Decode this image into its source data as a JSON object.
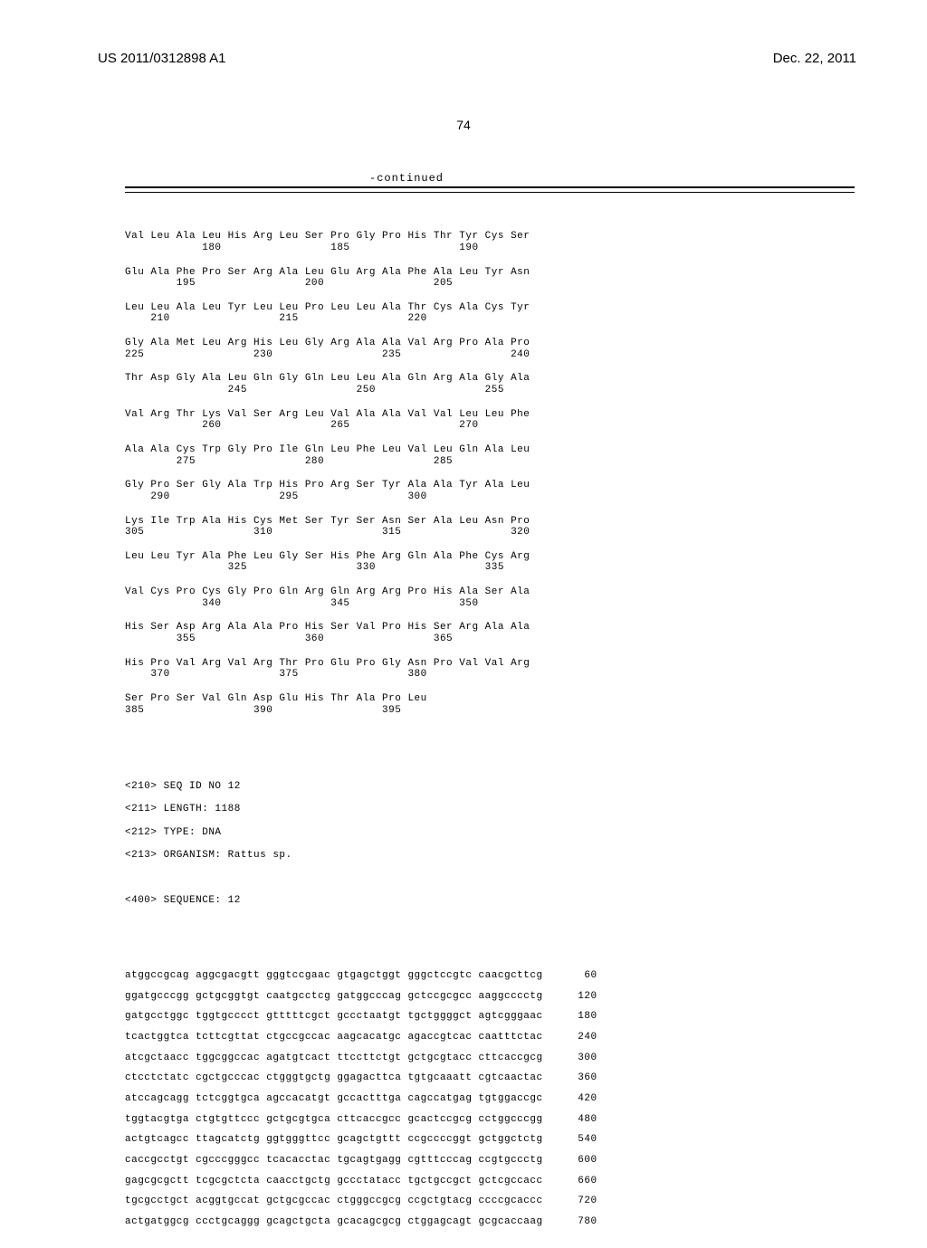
{
  "header": {
    "pub_number": "US 2011/0312898 A1",
    "pub_date": "Dec. 22, 2011"
  },
  "page_number": "74",
  "continued_label": "-continued",
  "protein_blocks": [
    {
      "aa": "Val Leu Ala Leu His Arg Leu Ser Pro Gly Pro His Thr Tyr Cys Ser",
      "nums": "            180                 185                 190"
    },
    {
      "aa": "Glu Ala Phe Pro Ser Arg Ala Leu Glu Arg Ala Phe Ala Leu Tyr Asn",
      "nums": "        195                 200                 205"
    },
    {
      "aa": "Leu Leu Ala Leu Tyr Leu Leu Pro Leu Leu Ala Thr Cys Ala Cys Tyr",
      "nums": "    210                 215                 220"
    },
    {
      "aa": "Gly Ala Met Leu Arg His Leu Gly Arg Ala Ala Val Arg Pro Ala Pro",
      "nums": "225                 230                 235                 240"
    },
    {
      "aa": "Thr Asp Gly Ala Leu Gln Gly Gln Leu Leu Ala Gln Arg Ala Gly Ala",
      "nums": "                245                 250                 255"
    },
    {
      "aa": "Val Arg Thr Lys Val Ser Arg Leu Val Ala Ala Val Val Leu Leu Phe",
      "nums": "            260                 265                 270"
    },
    {
      "aa": "Ala Ala Cys Trp Gly Pro Ile Gln Leu Phe Leu Val Leu Gln Ala Leu",
      "nums": "        275                 280                 285"
    },
    {
      "aa": "Gly Pro Ser Gly Ala Trp His Pro Arg Ser Tyr Ala Ala Tyr Ala Leu",
      "nums": "    290                 295                 300"
    },
    {
      "aa": "Lys Ile Trp Ala His Cys Met Ser Tyr Ser Asn Ser Ala Leu Asn Pro",
      "nums": "305                 310                 315                 320"
    },
    {
      "aa": "Leu Leu Tyr Ala Phe Leu Gly Ser His Phe Arg Gln Ala Phe Cys Arg",
      "nums": "                325                 330                 335"
    },
    {
      "aa": "Val Cys Pro Cys Gly Pro Gln Arg Gln Arg Arg Pro His Ala Ser Ala",
      "nums": "            340                 345                 350"
    },
    {
      "aa": "His Ser Asp Arg Ala Ala Pro His Ser Val Pro His Ser Arg Ala Ala",
      "nums": "        355                 360                 365"
    },
    {
      "aa": "His Pro Val Arg Val Arg Thr Pro Glu Pro Gly Asn Pro Val Val Arg",
      "nums": "    370                 375                 380"
    },
    {
      "aa": "Ser Pro Ser Val Gln Asp Glu His Thr Ala Pro Leu",
      "nums": "385                 390                 395"
    }
  ],
  "seq_meta": {
    "id_line": "<210> SEQ ID NO 12",
    "length_line": "<211> LENGTH: 1188",
    "type_line": "<212> TYPE: DNA",
    "organism_line": "<213> ORGANISM: Rattus sp.",
    "sequence_line": "<400> SEQUENCE: 12"
  },
  "dna_lines": [
    {
      "seq": "atggccgcag aggcgacgtt gggtccgaac gtgagctggt gggctccgtc caacgcttcg",
      "pos": "60"
    },
    {
      "seq": "ggatgcccgg gctgcggtgt caatgcctcg gatggcccag gctccgcgcc aaggcccctg",
      "pos": "120"
    },
    {
      "seq": "gatgcctggc tggtgcccct gtttttcgct gccctaatgt tgctggggct agtcgggaac",
      "pos": "180"
    },
    {
      "seq": "tcactggtca tcttcgttat ctgccgccac aagcacatgc agaccgtcac caatttctac",
      "pos": "240"
    },
    {
      "seq": "atcgctaacc tggcggccac agatgtcact ttccttctgt gctgcgtacc cttcaccgcg",
      "pos": "300"
    },
    {
      "seq": "ctcctctatc cgctgcccac ctgggtgctg ggagacttca tgtgcaaatt cgtcaactac",
      "pos": "360"
    },
    {
      "seq": "atccagcagg tctcggtgca agccacatgt gccactttga cagccatgag tgtggaccgc",
      "pos": "420"
    },
    {
      "seq": "tggtacgtga ctgtgttccc gctgcgtgca cttcaccgcc gcactccgcg cctggcccgg",
      "pos": "480"
    },
    {
      "seq": "actgtcagcc ttagcatctg ggtgggttcc gcagctgttt ccgccccggt gctggctctg",
      "pos": "540"
    },
    {
      "seq": "caccgcctgt cgcccgggcc tcacacctac tgcagtgagg cgtttcccag ccgtgccctg",
      "pos": "600"
    },
    {
      "seq": "gagcgcgctt tcgcgctcta caacctgctg gccctatacc tgctgccgct gctcgccacc",
      "pos": "660"
    },
    {
      "seq": "tgcgcctgct acggtgccat gctgcgccac ctgggccgcg ccgctgtacg ccccgcaccc",
      "pos": "720"
    },
    {
      "seq": "actgatggcg ccctgcaggg gcagctgcta gcacagcgcg ctggagcagt gcgcaccaag",
      "pos": "780"
    }
  ]
}
